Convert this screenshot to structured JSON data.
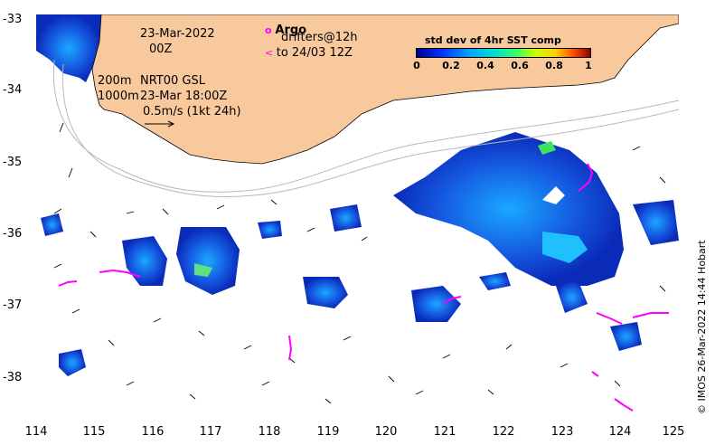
{
  "map": {
    "y_ticks": [
      "-33",
      "-34",
      "-35",
      "-36",
      "-37",
      "-38"
    ],
    "x_ticks": [
      "114",
      "115",
      "116",
      "117",
      "118",
      "119",
      "120",
      "121",
      "122",
      "123",
      "124",
      "125"
    ],
    "lon_range": [
      114,
      125
    ],
    "lat_range": [
      -38.5,
      -33
    ],
    "land_color": "#f9c99e",
    "drifter_color": "#ff00ff",
    "contour_color": "#b8b8b8",
    "colormap": "jet"
  },
  "annotations": {
    "date": "23-Mar-2022",
    "hour": "00Z",
    "argo_label": "Argo",
    "drifters_label": "drifters@12h",
    "drifters_to": "to 24/03 12Z",
    "depth_200": "200m",
    "depth_1000": "1000m",
    "nrt": "NRT00 GSL",
    "nrt_time": "23-Mar 18:00Z",
    "scale": "0.5m/s (1kt 24h)"
  },
  "legend": {
    "title": "std dev of 4hr SST comp",
    "ticks": [
      "0",
      "0.2",
      "0.4",
      "0.6",
      "0.8",
      "1"
    ]
  },
  "credit": "© IMOS 26-Mar-2022 14:44 Hobart"
}
